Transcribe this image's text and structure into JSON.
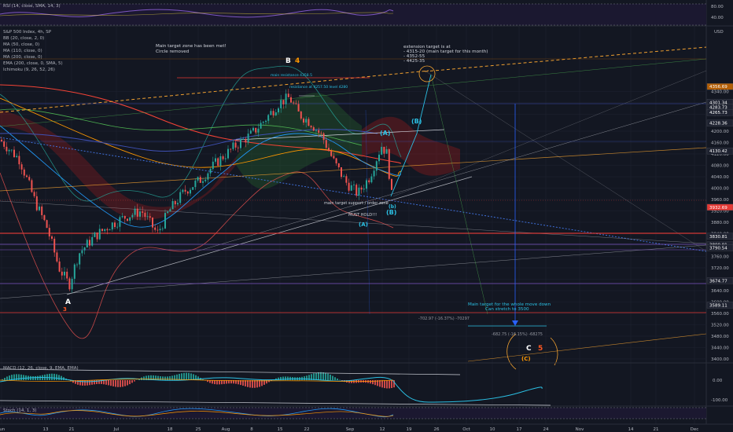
{
  "chart_data": {
    "type": "candlestick",
    "symbol_line": "S&P 500 Index, 4h, SP",
    "indicator_legend": [
      "BB (20, close, 2, 0)",
      "MA (50, close, 0)",
      "MA (110, close, 0)",
      "MA (200, close, 0)",
      "EMA (200, close, 0, SMA, 5)",
      "Ichimoku (9, 26, 52, 26)"
    ],
    "rsi_title": "RSI (14, close, SMA, 14, 3)",
    "rsi_ticks": [
      "80.00",
      "40.00"
    ],
    "macd_title": "MACD (12, 26, close, 9, EMA, EMA)",
    "macd_ticks": [
      "0.00",
      "-100.00"
    ],
    "stoch_title": "Stoch (14, 1, 3)",
    "price_unit": "USD",
    "y_ticks": [
      "4340.00",
      "4300.00",
      "4260.00",
      "4200.00",
      "4160.00",
      "4120.00",
      "4080.00",
      "4040.00",
      "4000.00",
      "3960.00",
      "3920.00",
      "3880.00",
      "3840.00",
      "3800.00",
      "3760.00",
      "3720.00",
      "3680.00",
      "3640.00",
      "3600.00",
      "3560.00",
      "3520.00",
      "3480.00",
      "3440.00",
      "3400.00"
    ],
    "price_levels": [
      {
        "value": "4356.69",
        "color": "#b45f06"
      },
      {
        "value": "4301.34",
        "color": "#1e2230"
      },
      {
        "value": "4283.73",
        "color": "#1e2230"
      },
      {
        "value": "4265.73",
        "color": "#1e2230"
      },
      {
        "value": "4228.36",
        "color": "#1e2230"
      },
      {
        "value": "4130.42",
        "color": "#1e2230"
      },
      {
        "value": "3932.69",
        "color": "#e53935"
      },
      {
        "value": "3830.81",
        "color": "#1e2230"
      },
      {
        "value": "3800.91",
        "color": "#1e2230"
      },
      {
        "value": "3790.54",
        "color": "#1e2230"
      },
      {
        "value": "3674.77",
        "color": "#1e2230"
      },
      {
        "value": "3589.11",
        "color": "#1e2230"
      }
    ],
    "x_ticks": [
      "Jun",
      "13",
      "21",
      "Jul",
      "18",
      "25",
      "Aug",
      "8",
      "15",
      "22",
      "Sep",
      "12",
      "19",
      "26",
      "Oct",
      "10",
      "17",
      "24",
      "Nov",
      "14",
      "21",
      "Dec"
    ],
    "annotations": {
      "main_target_met": [
        "Main target zone has been met!",
        "Circle removed"
      ],
      "extension": [
        "extension target is at",
        "- 4315-20 (main target for this month)",
        "- 4352-55",
        "- 4425-35"
      ],
      "main_target_down": [
        "Main target for the whole move down",
        "Can stretch to 3500"
      ],
      "support": "main target support / order zone",
      "must_hold": "MUST HOLD!!!",
      "measure_1": "-702.97 (-16.37%) -70297",
      "measure_2": "-682.75 (-16.15%) -68275",
      "top_label": "main resistance 4358.5",
      "mid_label": "resistance at 4257.50 level 4280"
    },
    "wave_labels": {
      "A_low": "A",
      "three": "3",
      "B_top": "B",
      "four": "4",
      "A_paren_low": "(A)",
      "A_paren_high": "(A)",
      "B_paren_proj": "(B)",
      "B_paren_now": "(B)",
      "small_b": "(b)",
      "C": "C",
      "five": "5",
      "C_paren": "(C)"
    }
  }
}
